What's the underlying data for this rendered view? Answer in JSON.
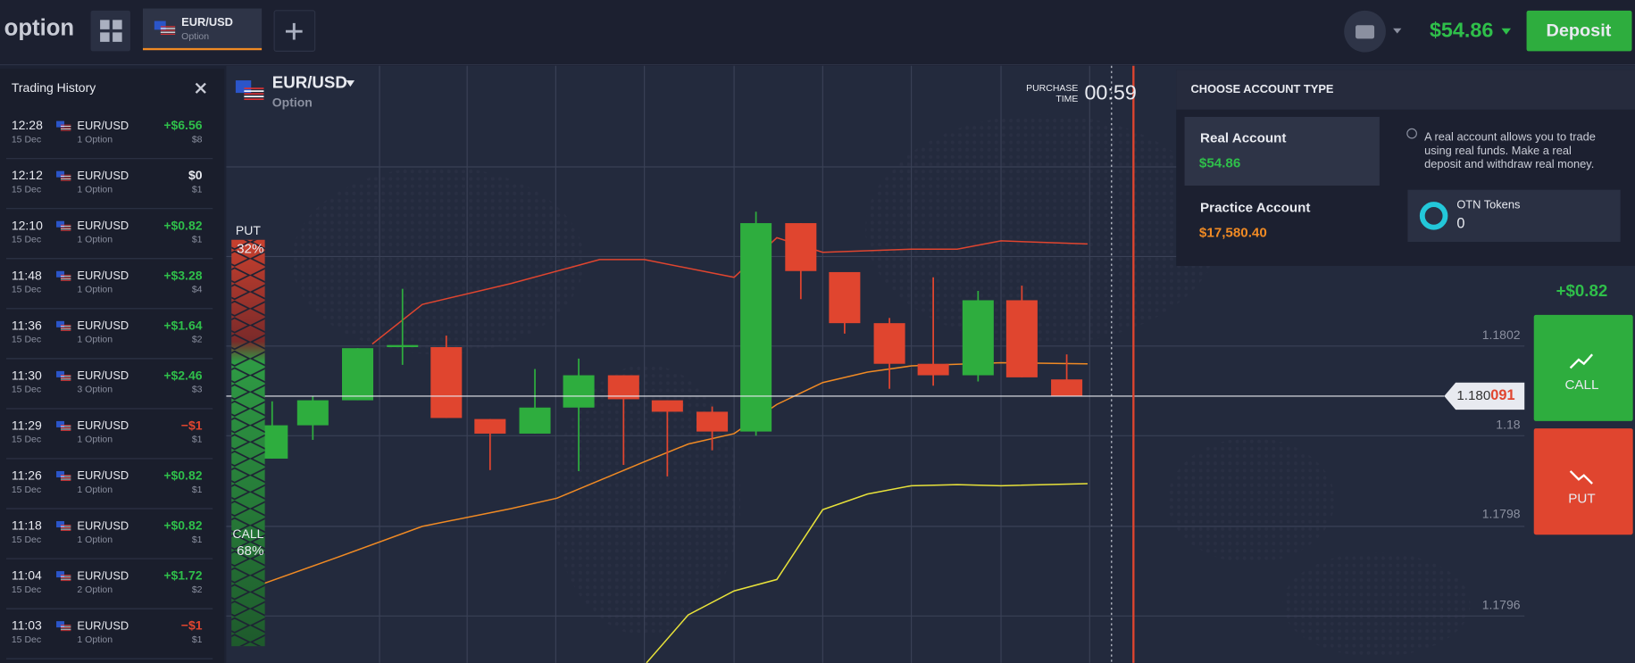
{
  "header": {
    "logo": "option",
    "tab": {
      "pair": "EUR/USD",
      "type": "Option"
    },
    "balance": "$54.86",
    "deposit": "Deposit"
  },
  "trading_history": {
    "title": "Trading History",
    "items": [
      {
        "time": "12:28",
        "date": "15 Dec",
        "pair": "EUR/USD",
        "count": "1 Option",
        "result": "+$6.56",
        "stake": "$8"
      },
      {
        "time": "12:12",
        "date": "15 Dec",
        "pair": "EUR/USD",
        "count": "1 Option",
        "result": "$0",
        "stake": "$1"
      },
      {
        "time": "12:10",
        "date": "15 Dec",
        "pair": "EUR/USD",
        "count": "1 Option",
        "result": "+$0.82",
        "stake": "$1"
      },
      {
        "time": "11:48",
        "date": "15 Dec",
        "pair": "EUR/USD",
        "count": "1 Option",
        "result": "+$3.28",
        "stake": "$4"
      },
      {
        "time": "11:36",
        "date": "15 Dec",
        "pair": "EUR/USD",
        "count": "1 Option",
        "result": "+$1.64",
        "stake": "$2"
      },
      {
        "time": "11:30",
        "date": "15 Dec",
        "pair": "EUR/USD",
        "count": "3 Option",
        "result": "+$2.46",
        "stake": "$3"
      },
      {
        "time": "11:29",
        "date": "15 Dec",
        "pair": "EUR/USD",
        "count": "1 Option",
        "result": "−$1",
        "stake": "$1"
      },
      {
        "time": "11:26",
        "date": "15 Dec",
        "pair": "EUR/USD",
        "count": "1 Option",
        "result": "+$0.82",
        "stake": "$1"
      },
      {
        "time": "11:18",
        "date": "15 Dec",
        "pair": "EUR/USD",
        "count": "1 Option",
        "result": "+$0.82",
        "stake": "$1"
      },
      {
        "time": "11:04",
        "date": "15 Dec",
        "pair": "EUR/USD",
        "count": "2 Option",
        "result": "+$1.72",
        "stake": "$2"
      },
      {
        "time": "11:03",
        "date": "15 Dec",
        "pair": "EUR/USD",
        "count": "1 Option",
        "result": "−$1",
        "stake": "$1"
      }
    ]
  },
  "chart": {
    "asset": "EUR/USD",
    "type": "Option",
    "purchase_label": [
      "PURCHASE",
      "TIME"
    ],
    "timer": "00:59",
    "put": {
      "label": "PUT",
      "percent": "32%"
    },
    "call": {
      "label": "CALL",
      "percent": "68%"
    },
    "price_levels": [
      "1.1802",
      "1.18",
      "1.1798",
      "1.1796"
    ],
    "current_price": {
      "main": "1.180",
      "last_digits": "091"
    }
  },
  "account_menu": {
    "title": "CHOOSE ACCOUNT TYPE",
    "accounts": [
      {
        "name": "Real Account",
        "balance": "$54.86"
      },
      {
        "name": "Practice Account",
        "balance": "$17,580.40"
      }
    ],
    "info": [
      "A real account allows you to trade",
      "using real funds. Make a real",
      "deposit and withdraw real money."
    ],
    "tokens": {
      "name": "OTN Tokens",
      "amount": "0"
    }
  },
  "trade_panel": {
    "profit": "+$0.82",
    "call": "CALL",
    "put": "PUT"
  }
}
